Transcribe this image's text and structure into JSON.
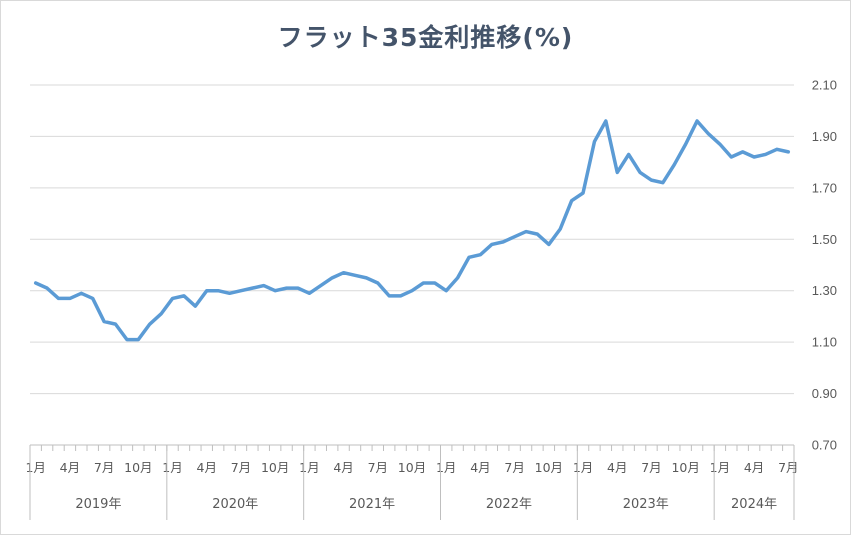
{
  "chart_data": {
    "type": "line",
    "title": "フラット35金利推移(%)",
    "xlabel": "",
    "ylabel": "",
    "ylim": [
      0.7,
      2.1
    ],
    "yticks": [
      "0.70",
      "0.90",
      "1.10",
      "1.30",
      "1.50",
      "1.70",
      "1.90",
      "2.10"
    ],
    "y_axis_position": "right",
    "grid": true,
    "legend": "none",
    "line_color": "#5b9bd5",
    "month_tick_labels": [
      "1月",
      "4月",
      "7月",
      "10月"
    ],
    "year_groups": [
      {
        "label": "2019年",
        "months": 12
      },
      {
        "label": "2020年",
        "months": 12
      },
      {
        "label": "2021年",
        "months": 12
      },
      {
        "label": "2022年",
        "months": 12
      },
      {
        "label": "2023年",
        "months": 12
      },
      {
        "label": "2024年",
        "months": 7
      }
    ],
    "series": [
      {
        "values": [
          1.33,
          1.31,
          1.27,
          1.27,
          1.29,
          1.27,
          1.18,
          1.17,
          1.11,
          1.11,
          1.17,
          1.21,
          1.27,
          1.28,
          1.24,
          1.3,
          1.3,
          1.29,
          1.3,
          1.31,
          1.32,
          1.3,
          1.31,
          1.31,
          1.29,
          1.32,
          1.35,
          1.37,
          1.36,
          1.35,
          1.33,
          1.28,
          1.28,
          1.3,
          1.33,
          1.33,
          1.3,
          1.35,
          1.43,
          1.44,
          1.48,
          1.49,
          1.51,
          1.53,
          1.52,
          1.48,
          1.54,
          1.65,
          1.68,
          1.88,
          1.96,
          1.76,
          1.83,
          1.76,
          1.73,
          1.72,
          1.79,
          1.87,
          1.96,
          1.91,
          1.87,
          1.82,
          1.84,
          1.82,
          1.83,
          1.85,
          1.84
        ]
      }
    ]
  }
}
